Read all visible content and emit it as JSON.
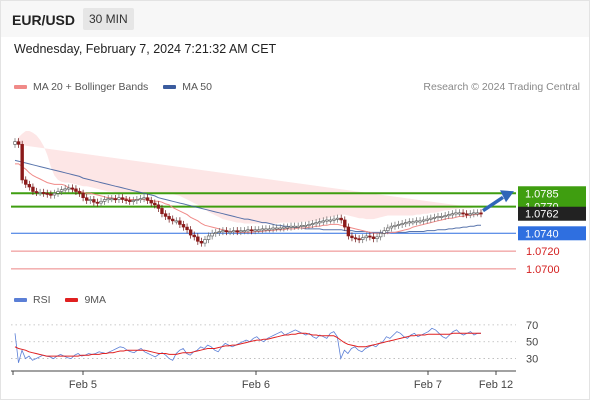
{
  "header": {
    "symbol": "EUR/USD",
    "interval": "30 MIN"
  },
  "datetime": "Wednesday, February 7, 2024 7:21:32 AM CET",
  "legend_main": [
    {
      "label": "MA 20 + Bollinger Bands",
      "color": "#f08a88"
    },
    {
      "label": "MA 50",
      "color": "#3b5c9e"
    }
  ],
  "credit": "Research © 2024 Trading Central",
  "legend_rsi": [
    {
      "label": "RSI",
      "color": "#5b7fd6"
    },
    {
      "label": "9MA",
      "color": "#e02020"
    }
  ],
  "colors": {
    "resistance": "#3f9e10",
    "pivot": "#2f6fe0",
    "support": "#e65b5b",
    "bollinger_fill": "#fde6e6"
  },
  "chart_data": [
    {
      "type": "candlestick",
      "ylim": [
        1.0692,
        1.0855
      ],
      "x_ticks": [
        "Feb 5",
        "Feb 6",
        "Feb 7",
        "Feb 12"
      ],
      "price_tags": [
        {
          "label": "1.0785",
          "value": 1.0785,
          "kind": "resistance"
        },
        {
          "label": "1.0770",
          "value": 1.077,
          "kind": "resistance"
        },
        {
          "label": "1.0762",
          "value": 1.0762,
          "kind": "current"
        },
        {
          "label": "1.0740",
          "value": 1.074,
          "kind": "pivot"
        },
        {
          "label": "1.0720",
          "value": 1.072,
          "kind": "support"
        },
        {
          "label": "1.0700",
          "value": 1.07,
          "kind": "support"
        }
      ],
      "levels": [
        {
          "value": 1.0785,
          "kind": "resistance"
        },
        {
          "value": 1.077,
          "kind": "resistance"
        },
        {
          "value": 1.074,
          "kind": "pivot"
        },
        {
          "value": 1.072,
          "kind": "support"
        },
        {
          "value": 1.07,
          "kind": "support"
        }
      ],
      "close": [
        1.0843,
        1.084,
        1.08,
        1.0795,
        1.0792,
        1.0787,
        1.0786,
        1.0786,
        1.0785,
        1.0784,
        1.0783,
        1.0785,
        1.0787,
        1.0789,
        1.079,
        1.0791,
        1.079,
        1.0787,
        1.0785,
        1.078,
        1.0777,
        1.0778,
        1.0775,
        1.0774,
        1.0776,
        1.0778,
        1.0779,
        1.0779,
        1.0778,
        1.078,
        1.0778,
        1.0777,
        1.0776,
        1.0777,
        1.0778,
        1.0779,
        1.078,
        1.0777,
        1.0774,
        1.0772,
        1.0768,
        1.0762,
        1.0759,
        1.0756,
        1.0754,
        1.0754,
        1.075,
        1.0747,
        1.0744,
        1.0738,
        1.0736,
        1.0731,
        1.0729,
        1.0733,
        1.0737,
        1.074,
        1.0741,
        1.0742,
        1.0743,
        1.0742,
        1.0742,
        1.0743,
        1.0742,
        1.0743,
        1.0743,
        1.0744,
        1.0743,
        1.0744,
        1.0744,
        1.0745,
        1.0745,
        1.0745,
        1.0746,
        1.0746,
        1.0746,
        1.0747,
        1.0747,
        1.0748,
        1.0748,
        1.0748,
        1.0749,
        1.0749,
        1.075,
        1.0751,
        1.0752,
        1.0753,
        1.0754,
        1.0755,
        1.0755,
        1.0756,
        1.0757,
        1.0755,
        1.0747,
        1.0737,
        1.0735,
        1.0734,
        1.0733,
        1.0735,
        1.0737,
        1.0736,
        1.0734,
        1.0736,
        1.074,
        1.0743,
        1.0746,
        1.0748,
        1.0749,
        1.075,
        1.0751,
        1.0752,
        1.0753,
        1.0753,
        1.0754,
        1.0754,
        1.0755,
        1.0756,
        1.0757,
        1.0758,
        1.0759,
        1.0759,
        1.076,
        1.0761,
        1.0762,
        1.0763,
        1.0763,
        1.0762,
        1.0761,
        1.0762,
        1.0763,
        1.0763,
        1.0762
      ],
      "ma20": [
        1.0818,
        1.0818,
        1.0815,
        1.0812,
        1.0808,
        1.0805,
        1.0803,
        1.0801,
        1.0799,
        1.0797,
        1.0796,
        1.0795,
        1.0795,
        1.0795,
        1.0794,
        1.0791,
        1.0789,
        1.0788,
        1.0787,
        1.0786,
        1.0785,
        1.0785,
        1.0784,
        1.0783,
        1.0782,
        1.0781,
        1.078,
        1.078,
        1.0779,
        1.0779,
        1.0779,
        1.0779,
        1.0778,
        1.0778,
        1.0778,
        1.0778,
        1.0778,
        1.0777,
        1.0777,
        1.0776,
        1.0776,
        1.0775,
        1.0773,
        1.0772,
        1.0769,
        1.0767,
        1.0765,
        1.0763,
        1.0761,
        1.0758,
        1.0756,
        1.0754,
        1.0751,
        1.0749,
        1.0748,
        1.0747,
        1.0746,
        1.0745,
        1.0744,
        1.0743,
        1.0742,
        1.0742,
        1.0741,
        1.0741,
        1.0741,
        1.0741,
        1.0741,
        1.0742,
        1.0742,
        1.0742,
        1.0743,
        1.0743,
        1.0743,
        1.0744,
        1.0744,
        1.0744,
        1.0745,
        1.0745,
        1.0745,
        1.0746,
        1.0746,
        1.0746,
        1.0747,
        1.0747,
        1.0748,
        1.0748,
        1.0749,
        1.0749,
        1.075,
        1.075,
        1.075,
        1.0749,
        1.0748,
        1.0747,
        1.0746,
        1.0745,
        1.0744,
        1.0743,
        1.0742,
        1.0741,
        1.074,
        1.074,
        1.074,
        1.074,
        1.074,
        1.0741,
        1.0741,
        1.0742,
        1.0743,
        1.0744,
        1.0745,
        1.0747,
        1.0748,
        1.0749,
        1.075,
        1.0751,
        1.0752,
        1.0753,
        1.0754,
        1.0755,
        1.0756,
        1.0757,
        1.0757,
        1.0758,
        1.0759,
        1.0759,
        1.076,
        1.076,
        1.0761,
        1.0761,
        1.0762
      ],
      "bb_upper": [
        1.084,
        1.0848,
        1.0852,
        1.0855,
        1.0855,
        1.0853,
        1.085,
        1.0845,
        1.0838,
        1.0828,
        1.0815,
        1.0805,
        1.08,
        1.0798,
        1.0797,
        1.0797,
        1.0796,
        1.0795,
        1.0794,
        1.0793,
        1.0793,
        1.0792,
        1.0791,
        1.079,
        1.0789,
        1.0788,
        1.0787,
        1.0787,
        1.0786,
        1.0786,
        1.0786,
        1.0786,
        1.0786,
        1.0786,
        1.0786,
        1.0786,
        1.0786,
        1.0786,
        1.0786,
        1.0786,
        1.0785,
        1.0785,
        1.0785,
        1.0784,
        1.0784,
        1.0783,
        1.0782,
        1.078,
        1.0778,
        1.0776,
        1.0774,
        1.0772,
        1.077,
        1.0767,
        1.0764,
        1.0762,
        1.076,
        1.0758,
        1.0756,
        1.0755,
        1.0754,
        1.0753,
        1.0752,
        1.0752,
        1.0751,
        1.0751,
        1.0751,
        1.0751,
        1.0751,
        1.0751,
        1.0751,
        1.0751,
        1.0751,
        1.0751,
        1.0752,
        1.0752,
        1.0752,
        1.0752,
        1.0752,
        1.0752,
        1.0753,
        1.0753,
        1.0753,
        1.0754,
        1.0754,
        1.0755,
        1.0756,
        1.0757,
        1.0758,
        1.0759,
        1.076,
        1.0761,
        1.0761,
        1.076,
        1.0759,
        1.0758,
        1.0757,
        1.0757,
        1.0756,
        1.0756,
        1.0756,
        1.0757,
        1.0758,
        1.0759,
        1.076,
        1.076,
        1.076,
        1.076,
        1.076,
        1.076,
        1.076,
        1.076,
        1.0761,
        1.0761,
        1.0762,
        1.0762,
        1.0763,
        1.0763,
        1.0764,
        1.0765,
        1.0766,
        1.0766,
        1.0767,
        1.0767,
        1.0768,
        1.0768,
        1.0768,
        1.0768,
        1.0769
      ],
      "bb_lower": [
        1.0795,
        1.079,
        1.0785,
        1.078,
        1.0778,
        1.0777,
        1.0776,
        1.0775,
        1.0774,
        1.0773,
        1.0773,
        1.0774,
        1.0775,
        1.0776,
        1.0776,
        1.0776,
        1.0775,
        1.0775,
        1.0774,
        1.0773,
        1.0772,
        1.0771,
        1.077,
        1.0769,
        1.0768,
        1.0768,
        1.0768,
        1.0769,
        1.0769,
        1.077,
        1.077,
        1.077,
        1.077,
        1.077,
        1.077,
        1.077,
        1.077,
        1.0769,
        1.0768,
        1.0767,
        1.0765,
        1.0763,
        1.076,
        1.0757,
        1.0754,
        1.0751,
        1.0748,
        1.0744,
        1.074,
        1.0737,
        1.0734,
        1.0731,
        1.0729,
        1.0727,
        1.0726,
        1.0726,
        1.0727,
        1.0728,
        1.0729,
        1.073,
        1.0731,
        1.0731,
        1.0732,
        1.0732,
        1.0732,
        1.0732,
        1.0732,
        1.0733,
        1.0733,
        1.0733,
        1.0734,
        1.0734,
        1.0734,
        1.0735,
        1.0735,
        1.0735,
        1.0736,
        1.0736,
        1.0737,
        1.0737,
        1.0738,
        1.0738,
        1.0739,
        1.0739,
        1.074,
        1.074,
        1.0741,
        1.0741,
        1.0741,
        1.0741,
        1.074,
        1.0738,
        1.0735,
        1.0732,
        1.073,
        1.0728,
        1.0727,
        1.0727,
        1.0727,
        1.0727,
        1.0727,
        1.0727,
        1.0727,
        1.0728,
        1.0728,
        1.0729,
        1.073,
        1.0731,
        1.0732,
        1.0733,
        1.0734,
        1.0735,
        1.0737,
        1.0738,
        1.0739,
        1.074,
        1.0741,
        1.0742,
        1.0743,
        1.0744,
        1.0745,
        1.0746,
        1.0747,
        1.0748,
        1.0749,
        1.075,
        1.0751,
        1.0752,
        1.0753
      ],
      "ma50": [
        1.0822,
        1.0821,
        1.082,
        1.0819,
        1.0818,
        1.0817,
        1.0816,
        1.0815,
        1.0814,
        1.0813,
        1.0812,
        1.0811,
        1.081,
        1.0809,
        1.0808,
        1.0807,
        1.0806,
        1.0805,
        1.0804,
        1.0802,
        1.0801,
        1.08,
        1.0799,
        1.0798,
        1.0797,
        1.0796,
        1.0795,
        1.0794,
        1.0793,
        1.0792,
        1.0791,
        1.079,
        1.0789,
        1.0788,
        1.0787,
        1.0786,
        1.0785,
        1.0784,
        1.0783,
        1.0782,
        1.078,
        1.0779,
        1.0778,
        1.0777,
        1.0776,
        1.0775,
        1.0774,
        1.0773,
        1.0772,
        1.0771,
        1.077,
        1.0769,
        1.0768,
        1.0767,
        1.0766,
        1.0765,
        1.0764,
        1.0763,
        1.0762,
        1.0761,
        1.076,
        1.0759,
        1.0758,
        1.0757,
        1.0756,
        1.0756,
        1.0755,
        1.0754,
        1.0753,
        1.0752,
        1.0752,
        1.0751,
        1.075,
        1.0749,
        1.0749,
        1.0748,
        1.0748,
        1.0747,
        1.0747,
        1.0746,
        1.0746,
        1.0745,
        1.0745,
        1.0745,
        1.0745,
        1.0745,
        1.0744,
        1.0744,
        1.0744,
        1.0744,
        1.0744,
        1.0744,
        1.0743,
        1.0743,
        1.0743,
        1.0742,
        1.0742,
        1.0742,
        1.0742,
        1.0741,
        1.0741,
        1.0741,
        1.0741,
        1.0741,
        1.0741,
        1.0741,
        1.0741,
        1.0741,
        1.0741,
        1.0741,
        1.0742,
        1.0742,
        1.0742,
        1.0742,
        1.0742,
        1.0743,
        1.0743,
        1.0743,
        1.0744,
        1.0744,
        1.0744,
        1.0745,
        1.0745,
        1.0746,
        1.0746,
        1.0747,
        1.0747,
        1.0748,
        1.0748,
        1.0749,
        1.0749
      ]
    },
    {
      "type": "line",
      "ylim": [
        20,
        77
      ],
      "y_ticks": [
        "70",
        "50",
        "30"
      ],
      "x_ticks": [
        "Feb 5",
        "Feb 6",
        "Feb 7",
        "Feb 12"
      ],
      "series": [
        {
          "name": "RSI",
          "values": [
            60,
            25,
            40,
            30,
            33,
            28,
            30,
            32,
            34,
            33,
            32,
            30,
            33,
            35,
            33,
            31,
            30,
            34,
            36,
            33,
            34,
            36,
            35,
            36,
            38,
            37,
            36,
            38,
            40,
            42,
            44,
            43,
            40,
            38,
            37,
            40,
            42,
            38,
            36,
            34,
            32,
            35,
            37,
            34,
            30,
            28,
            36,
            40,
            42,
            36,
            34,
            38,
            40,
            44,
            42,
            46,
            44,
            40,
            38,
            44,
            48,
            46,
            44,
            46,
            48,
            50,
            52,
            50,
            54,
            56,
            52,
            50,
            54,
            56,
            58,
            60,
            62,
            58,
            60,
            62,
            64,
            62,
            60,
            58,
            60,
            56,
            54,
            58,
            56,
            54,
            60,
            62,
            56,
            30,
            40,
            36,
            42,
            44,
            40,
            38,
            42,
            44,
            46,
            44,
            48,
            50,
            56,
            54,
            58,
            62,
            60,
            56,
            54,
            58,
            60,
            56,
            58,
            60,
            62,
            66,
            64,
            60,
            56,
            54,
            58,
            62,
            64,
            60,
            58,
            60,
            62,
            58,
            60,
            60
          ]
        },
        {
          "name": "9MA",
          "values": [
            44,
            42,
            41,
            40,
            38,
            37,
            36,
            35,
            34,
            33,
            33,
            33,
            33,
            33,
            33,
            33,
            33,
            33,
            33,
            34,
            34,
            34,
            35,
            35,
            35,
            36,
            36,
            37,
            37,
            38,
            39,
            39,
            40,
            40,
            40,
            40,
            40,
            40,
            39,
            38,
            37,
            36,
            36,
            36,
            35,
            35,
            35,
            36,
            37,
            37,
            37,
            38,
            39,
            40,
            41,
            42,
            42,
            42,
            43,
            44,
            45,
            45,
            46,
            46,
            47,
            48,
            49,
            50,
            51,
            52,
            52,
            53,
            53,
            54,
            55,
            56,
            57,
            58,
            58,
            59,
            59,
            60,
            60,
            60,
            59,
            58,
            58,
            57,
            57,
            57,
            57,
            57,
            55,
            52,
            49,
            47,
            46,
            45,
            44,
            44,
            44,
            45,
            46,
            47,
            48,
            49,
            50,
            51,
            52,
            53,
            54,
            55,
            56,
            57,
            57,
            58,
            58,
            58,
            59,
            59,
            59,
            59,
            59,
            59,
            59,
            60,
            60,
            60,
            60,
            60,
            60,
            60,
            60,
            60
          ]
        }
      ]
    }
  ]
}
